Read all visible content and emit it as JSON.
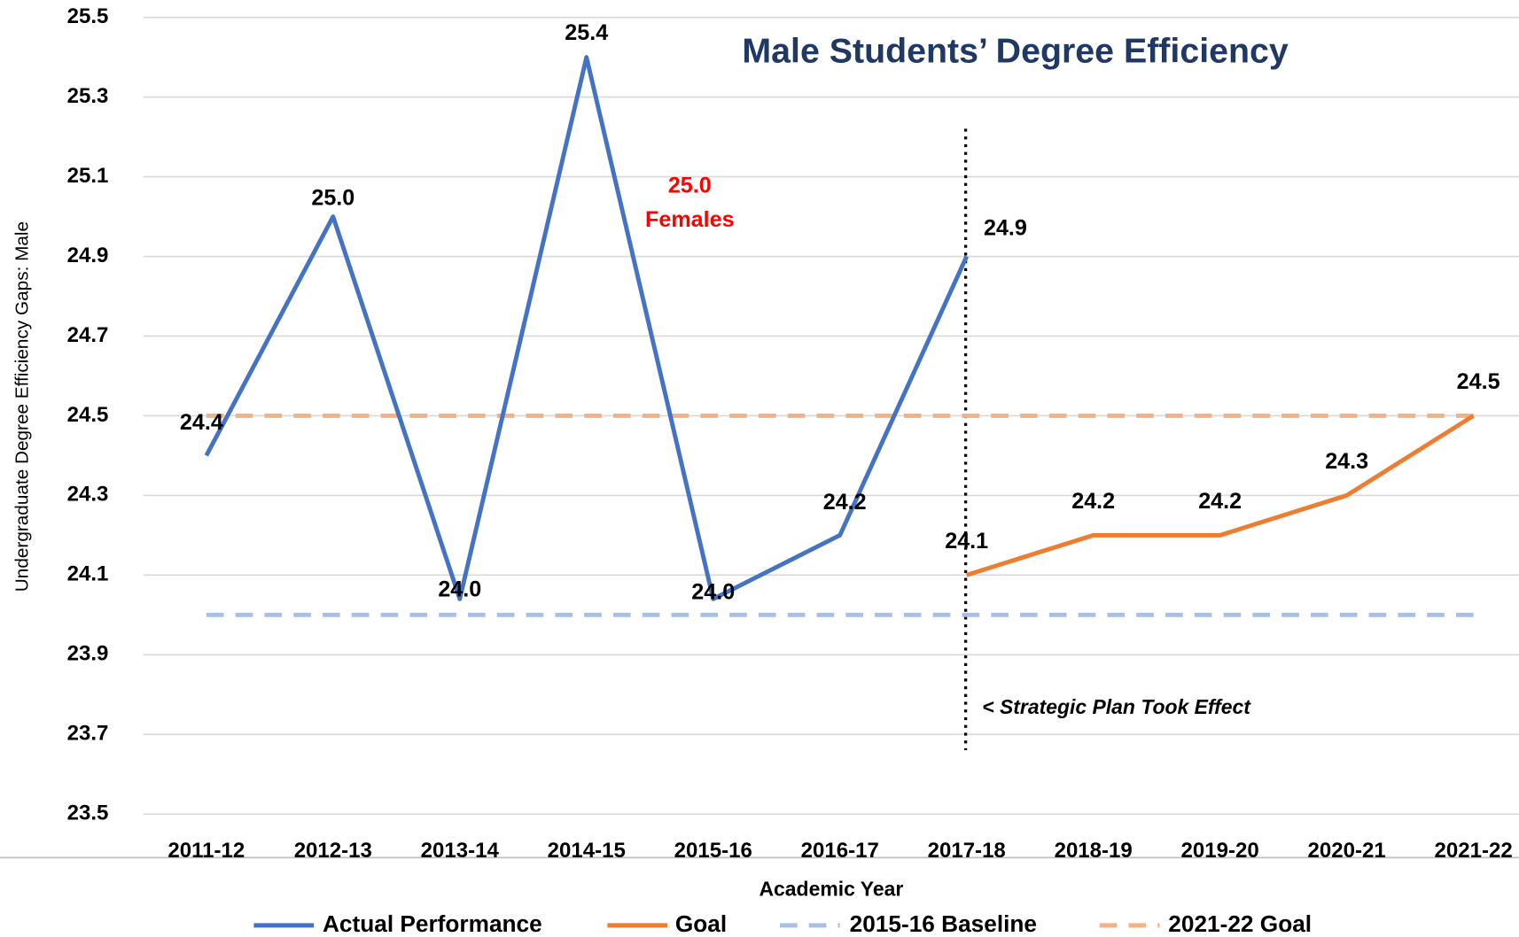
{
  "chart_data": {
    "type": "line",
    "title": "Male Students’ Degree Efficiency",
    "xlabel": "Academic Year",
    "ylabel": "Undergraduate Degree Efficiency Gaps: Male",
    "categories": [
      "2011-12",
      "2012-13",
      "2013-14",
      "2014-15",
      "2015-16",
      "2016-17",
      "2017-18",
      "2018-19",
      "2019-20",
      "2020-21",
      "2021-22"
    ],
    "series": [
      {
        "name": "Actual Performance",
        "color": "#4472c4",
        "style": "solid",
        "values": [
          24.4,
          25.0,
          24.04,
          25.4,
          24.04,
          24.2,
          24.9,
          null,
          null,
          null,
          null
        ],
        "value_labels": [
          "24.4",
          "25.0",
          "24.0",
          "25.4",
          "24.0",
          "24.2",
          "24.9",
          null,
          null,
          null,
          null
        ]
      },
      {
        "name": "Goal",
        "color": "#ed7d31",
        "style": "solid",
        "values": [
          null,
          null,
          null,
          null,
          null,
          null,
          24.1,
          24.2,
          24.2,
          24.3,
          24.5
        ],
        "value_labels": [
          null,
          null,
          null,
          null,
          null,
          null,
          "24.1",
          "24.2",
          "24.2",
          "24.3",
          "24.5"
        ]
      },
      {
        "name": "2015-16 Baseline",
        "color": "#a9bfe6",
        "style": "dashed",
        "values": [
          24.0,
          24.0,
          24.0,
          24.0,
          24.0,
          24.0,
          24.0,
          24.0,
          24.0,
          24.0,
          24.0
        ]
      },
      {
        "name": "2021-22 Goal",
        "color": "#f4b183",
        "style": "dashed",
        "values": [
          24.5,
          24.5,
          24.5,
          24.5,
          24.5,
          24.5,
          24.5,
          24.5,
          24.5,
          24.5,
          24.5
        ]
      }
    ],
    "ylim": [
      23.5,
      25.5
    ],
    "yticks": [
      23.5,
      23.7,
      23.9,
      24.1,
      24.3,
      24.5,
      24.7,
      24.9,
      25.1,
      25.3,
      25.5
    ],
    "grid": true,
    "legend": "bottom",
    "annotations": [
      {
        "text": "25.0",
        "color": "#ff0000"
      },
      {
        "text": "Females",
        "color": "#ff0000"
      },
      {
        "text": "< Strategic Plan Took Effect",
        "at": "2017-18"
      }
    ]
  }
}
